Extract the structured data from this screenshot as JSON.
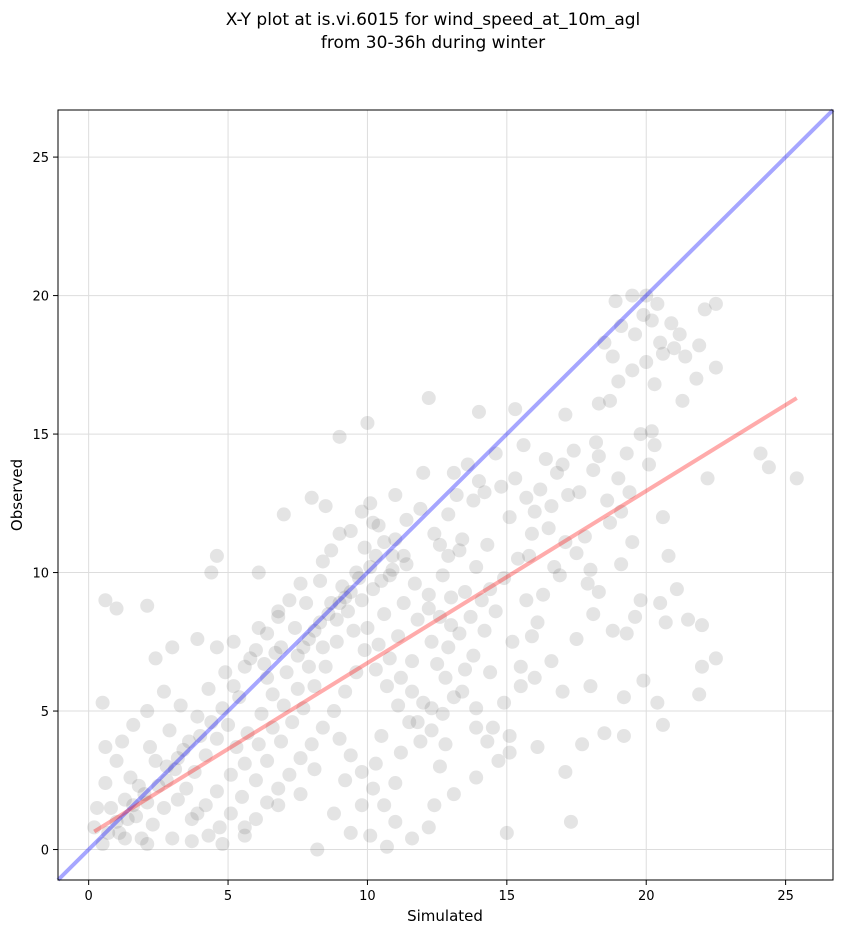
{
  "chart_data": {
    "type": "scatter",
    "title_line1": "X-Y plot at is.vi.6015 for wind_speed_at_10m_agl",
    "title_line2": "from 30-36h during winter",
    "xlabel": "Simulated",
    "ylabel": "Observed",
    "xlim": [
      -1.1,
      26.7
    ],
    "ylim": [
      -1.1,
      26.7
    ],
    "xticks": [
      0,
      5,
      10,
      15,
      20,
      25
    ],
    "yticks": [
      0,
      5,
      10,
      15,
      20,
      25
    ],
    "xtick_labels": [
      "0",
      "5",
      "10",
      "15",
      "20",
      "25"
    ],
    "ytick_labels": [
      "0",
      "5",
      "10",
      "15",
      "20",
      "25"
    ],
    "grid": true,
    "points_color": "#555555",
    "identity_line": {
      "color": "#0000ff",
      "points": [
        [
          -1.1,
          -1.1
        ],
        [
          26.7,
          26.7
        ]
      ]
    },
    "fit_line": {
      "color": "#ff0000",
      "points": [
        [
          0.2,
          0.65
        ],
        [
          25.4,
          16.3
        ]
      ]
    },
    "points": [
      [
        0.5,
        5.3
      ],
      [
        0.6,
        3.7
      ],
      [
        0.6,
        9.0
      ],
      [
        1.0,
        8.7
      ],
      [
        2.1,
        8.8
      ],
      [
        4.4,
        10.0
      ],
      [
        4.6,
        10.6
      ],
      [
        6.1,
        10.0
      ],
      [
        7.0,
        12.1
      ],
      [
        8.0,
        12.7
      ],
      [
        8.5,
        12.4
      ],
      [
        9.0,
        14.9
      ],
      [
        10.0,
        15.4
      ],
      [
        12.2,
        16.3
      ],
      [
        14.0,
        15.8
      ],
      [
        15.3,
        15.9
      ],
      [
        17.1,
        15.7
      ],
      [
        18.5,
        18.3
      ],
      [
        18.9,
        19.8
      ],
      [
        19.5,
        20.0
      ],
      [
        20.0,
        20.0
      ],
      [
        20.2,
        19.1
      ],
      [
        20.5,
        18.3
      ],
      [
        21.0,
        18.1
      ],
      [
        21.4,
        17.8
      ],
      [
        21.8,
        17.0
      ],
      [
        22.1,
        19.5
      ],
      [
        22.5,
        19.7
      ],
      [
        22.5,
        17.4
      ],
      [
        21.9,
        18.2
      ],
      [
        20.6,
        17.9
      ],
      [
        20.3,
        16.8
      ],
      [
        19.5,
        17.3
      ],
      [
        19.0,
        16.9
      ],
      [
        18.7,
        16.2
      ],
      [
        18.3,
        16.1
      ],
      [
        19.8,
        15.0
      ],
      [
        20.3,
        14.6
      ],
      [
        18.3,
        14.2
      ],
      [
        16.8,
        13.6
      ],
      [
        22.2,
        13.4
      ],
      [
        24.1,
        14.3
      ],
      [
        24.4,
        13.8
      ],
      [
        25.4,
        13.4
      ],
      [
        20.1,
        13.9
      ],
      [
        20.6,
        12.0
      ],
      [
        19.1,
        12.2
      ],
      [
        19.5,
        11.1
      ],
      [
        20.8,
        10.6
      ],
      [
        17.8,
        11.3
      ],
      [
        17.2,
        12.8
      ],
      [
        16.5,
        11.6
      ],
      [
        15.8,
        10.6
      ],
      [
        16.9,
        9.9
      ],
      [
        18.0,
        10.1
      ],
      [
        19.8,
        9.0
      ],
      [
        20.5,
        8.9
      ],
      [
        21.1,
        9.4
      ],
      [
        21.5,
        8.3
      ],
      [
        22.0,
        8.1
      ],
      [
        20.7,
        8.2
      ],
      [
        19.6,
        8.4
      ],
      [
        19.3,
        7.8
      ],
      [
        18.8,
        7.9
      ],
      [
        18.1,
        8.5
      ],
      [
        17.5,
        7.6
      ],
      [
        16.6,
        6.8
      ],
      [
        16.0,
        6.2
      ],
      [
        15.5,
        5.9
      ],
      [
        17.0,
        5.7
      ],
      [
        18.0,
        5.9
      ],
      [
        19.2,
        5.5
      ],
      [
        19.9,
        6.1
      ],
      [
        20.4,
        5.3
      ],
      [
        20.6,
        4.5
      ],
      [
        21.9,
        5.6
      ],
      [
        22.0,
        6.6
      ],
      [
        22.5,
        6.9
      ],
      [
        19.2,
        4.1
      ],
      [
        18.5,
        4.2
      ],
      [
        17.7,
        3.8
      ],
      [
        17.1,
        2.8
      ],
      [
        17.3,
        1.0
      ],
      [
        15.0,
        0.6
      ],
      [
        16.1,
        3.7
      ],
      [
        15.1,
        3.5
      ],
      [
        14.5,
        4.4
      ],
      [
        13.9,
        2.6
      ],
      [
        13.1,
        2.0
      ],
      [
        12.4,
        1.6
      ],
      [
        12.2,
        0.8
      ],
      [
        11.6,
        0.4
      ],
      [
        10.7,
        0.1
      ],
      [
        10.1,
        0.5
      ],
      [
        9.4,
        0.6
      ],
      [
        8.2,
        0.0
      ],
      [
        8.8,
        1.3
      ],
      [
        9.8,
        1.6
      ],
      [
        11.0,
        2.4
      ],
      [
        12.6,
        3.0
      ],
      [
        12.8,
        3.8
      ],
      [
        13.9,
        4.4
      ],
      [
        14.9,
        5.3
      ],
      [
        14.4,
        6.4
      ],
      [
        15.2,
        7.5
      ],
      [
        14.6,
        8.6
      ],
      [
        16.1,
        8.2
      ],
      [
        15.7,
        9.0
      ],
      [
        13.5,
        9.3
      ],
      [
        12.9,
        10.6
      ],
      [
        14.3,
        11.0
      ],
      [
        15.1,
        12.0
      ],
      [
        16.0,
        12.2
      ],
      [
        14.0,
        13.3
      ],
      [
        13.1,
        13.6
      ],
      [
        12.0,
        13.6
      ],
      [
        11.0,
        12.8
      ],
      [
        10.1,
        12.5
      ],
      [
        9.0,
        11.4
      ],
      [
        8.4,
        10.4
      ],
      [
        7.6,
        9.6
      ],
      [
        6.8,
        8.6
      ],
      [
        6.1,
        8.0
      ],
      [
        5.2,
        7.5
      ],
      [
        4.6,
        7.3
      ],
      [
        3.9,
        7.6
      ],
      [
        3.0,
        7.3
      ],
      [
        2.4,
        6.9
      ],
      [
        2.7,
        5.7
      ],
      [
        2.1,
        5.0
      ],
      [
        1.6,
        4.5
      ],
      [
        1.2,
        3.9
      ],
      [
        1.0,
        3.2
      ],
      [
        0.6,
        2.4
      ],
      [
        0.3,
        1.5
      ],
      [
        0.2,
        0.8
      ],
      [
        0.5,
        0.2
      ],
      [
        1.3,
        0.4
      ],
      [
        2.1,
        0.2
      ],
      [
        3.0,
        0.4
      ],
      [
        3.7,
        0.3
      ],
      [
        4.8,
        0.2
      ],
      [
        5.6,
        0.8
      ],
      [
        6.8,
        1.6
      ],
      [
        7.6,
        2.0
      ],
      [
        8.1,
        2.9
      ],
      [
        9.2,
        2.5
      ],
      [
        10.3,
        3.1
      ],
      [
        10.5,
        4.1
      ],
      [
        11.2,
        3.5
      ],
      [
        11.8,
        4.6
      ],
      [
        12.3,
        5.1
      ],
      [
        12.8,
        6.2
      ],
      [
        13.4,
        5.7
      ],
      [
        13.8,
        7.0
      ],
      [
        14.2,
        7.9
      ],
      [
        13.0,
        8.1
      ],
      [
        12.3,
        7.5
      ],
      [
        11.6,
        6.8
      ],
      [
        11.1,
        7.7
      ],
      [
        10.6,
        8.5
      ],
      [
        10.2,
        9.4
      ],
      [
        9.6,
        10.0
      ],
      [
        9.2,
        9.1
      ],
      [
        8.9,
        8.3
      ],
      [
        8.4,
        7.3
      ],
      [
        7.9,
        6.6
      ],
      [
        7.5,
        5.8
      ],
      [
        7.0,
        5.2
      ],
      [
        6.6,
        4.4
      ],
      [
        6.1,
        3.8
      ],
      [
        5.6,
        3.1
      ],
      [
        5.1,
        2.7
      ],
      [
        4.6,
        2.1
      ],
      [
        4.2,
        1.6
      ],
      [
        3.7,
        1.1
      ],
      [
        3.2,
        1.8
      ],
      [
        2.8,
        2.5
      ],
      [
        2.4,
        3.2
      ],
      [
        2.0,
        2.0
      ],
      [
        1.7,
        1.2
      ],
      [
        1.3,
        1.8
      ],
      [
        1.0,
        1.0
      ],
      [
        0.8,
        1.5
      ],
      [
        0.7,
        0.6
      ],
      [
        1.5,
        2.6
      ],
      [
        2.2,
        3.7
      ],
      [
        2.9,
        4.3
      ],
      [
        3.3,
        5.2
      ],
      [
        3.9,
        4.8
      ],
      [
        4.3,
        5.8
      ],
      [
        4.9,
        6.4
      ],
      [
        5.4,
        5.5
      ],
      [
        5.8,
        6.9
      ],
      [
        6.4,
        6.2
      ],
      [
        6.9,
        7.3
      ],
      [
        7.4,
        8.0
      ],
      [
        7.8,
        8.9
      ],
      [
        8.3,
        9.7
      ],
      [
        8.7,
        10.8
      ],
      [
        9.4,
        11.5
      ],
      [
        9.9,
        10.9
      ],
      [
        10.4,
        11.7
      ],
      [
        10.9,
        10.6
      ],
      [
        11.4,
        11.9
      ],
      [
        11.9,
        12.3
      ],
      [
        12.4,
        11.4
      ],
      [
        12.9,
        12.1
      ],
      [
        13.4,
        11.2
      ],
      [
        13.8,
        12.6
      ],
      [
        14.2,
        12.9
      ],
      [
        14.8,
        13.1
      ],
      [
        15.3,
        13.4
      ],
      [
        15.7,
        12.7
      ],
      [
        16.2,
        13.0
      ],
      [
        16.6,
        12.4
      ],
      [
        17.0,
        13.9
      ],
      [
        17.6,
        12.9
      ],
      [
        18.1,
        13.7
      ],
      [
        18.6,
        12.6
      ],
      [
        19.0,
        13.4
      ],
      [
        19.4,
        12.9
      ],
      [
        15.9,
        11.4
      ],
      [
        15.4,
        10.5
      ],
      [
        14.9,
        9.8
      ],
      [
        14.4,
        9.4
      ],
      [
        13.9,
        10.2
      ],
      [
        13.3,
        10.8
      ],
      [
        12.7,
        9.9
      ],
      [
        12.2,
        9.2
      ],
      [
        11.7,
        9.6
      ],
      [
        11.3,
        8.9
      ],
      [
        10.8,
        9.9
      ],
      [
        10.3,
        10.6
      ],
      [
        9.8,
        9.0
      ],
      [
        9.3,
        8.6
      ],
      [
        8.9,
        7.5
      ],
      [
        8.5,
        6.6
      ],
      [
        8.1,
        5.9
      ],
      [
        7.7,
        5.1
      ],
      [
        7.3,
        4.6
      ],
      [
        6.9,
        3.9
      ],
      [
        6.4,
        3.2
      ],
      [
        6.0,
        2.5
      ],
      [
        5.5,
        1.9
      ],
      [
        5.1,
        1.3
      ],
      [
        4.7,
        0.8
      ],
      [
        4.3,
        0.5
      ],
      [
        3.9,
        1.3
      ],
      [
        3.5,
        2.2
      ],
      [
        3.1,
        2.9
      ],
      [
        2.7,
        1.5
      ],
      [
        2.3,
        0.9
      ],
      [
        1.9,
        0.4
      ],
      [
        1.6,
        1.6
      ],
      [
        1.1,
        0.6
      ],
      [
        3.4,
        3.6
      ],
      [
        3.8,
        2.8
      ],
      [
        4.2,
        3.4
      ],
      [
        4.6,
        4.0
      ],
      [
        5.0,
        4.5
      ],
      [
        5.3,
        3.7
      ],
      [
        5.7,
        4.2
      ],
      [
        6.2,
        4.9
      ],
      [
        6.6,
        5.6
      ],
      [
        7.1,
        6.4
      ],
      [
        7.5,
        7.0
      ],
      [
        7.9,
        7.6
      ],
      [
        8.3,
        8.2
      ],
      [
        8.7,
        8.9
      ],
      [
        9.1,
        9.5
      ],
      [
        9.5,
        7.9
      ],
      [
        9.9,
        7.2
      ],
      [
        10.3,
        6.5
      ],
      [
        10.7,
        5.9
      ],
      [
        11.1,
        5.2
      ],
      [
        11.5,
        4.6
      ],
      [
        11.9,
        3.9
      ],
      [
        12.3,
        4.3
      ],
      [
        12.7,
        4.9
      ],
      [
        13.1,
        5.5
      ],
      [
        13.5,
        6.5
      ],
      [
        13.9,
        5.1
      ],
      [
        14.3,
        3.9
      ],
      [
        14.7,
        3.2
      ],
      [
        15.1,
        4.1
      ],
      [
        15.5,
        6.6
      ],
      [
        15.9,
        7.7
      ],
      [
        16.3,
        9.2
      ],
      [
        16.7,
        10.2
      ],
      [
        17.1,
        11.1
      ],
      [
        17.5,
        10.7
      ],
      [
        17.9,
        9.6
      ],
      [
        18.3,
        9.3
      ],
      [
        18.7,
        11.8
      ],
      [
        19.1,
        10.3
      ],
      [
        10.0,
        8.0
      ],
      [
        10.4,
        7.4
      ],
      [
        10.8,
        6.9
      ],
      [
        11.2,
        6.2
      ],
      [
        11.6,
        5.7
      ],
      [
        12.0,
        5.3
      ],
      [
        12.5,
        6.7
      ],
      [
        12.9,
        7.3
      ],
      [
        13.3,
        7.8
      ],
      [
        13.7,
        8.4
      ],
      [
        14.1,
        9.0
      ],
      [
        9.6,
        6.4
      ],
      [
        9.2,
        5.7
      ],
      [
        8.8,
        5.0
      ],
      [
        8.4,
        4.4
      ],
      [
        8.0,
        3.8
      ],
      [
        7.6,
        3.3
      ],
      [
        7.2,
        2.7
      ],
      [
        6.8,
        2.2
      ],
      [
        6.4,
        1.7
      ],
      [
        6.0,
        1.1
      ],
      [
        5.6,
        0.5
      ],
      [
        9.0,
        4.0
      ],
      [
        9.4,
        3.4
      ],
      [
        9.8,
        2.8
      ],
      [
        10.2,
        2.2
      ],
      [
        10.6,
        1.6
      ],
      [
        11.0,
        1.0
      ],
      [
        5.2,
        5.9
      ],
      [
        5.6,
        6.6
      ],
      [
        6.0,
        7.2
      ],
      [
        6.4,
        7.8
      ],
      [
        6.8,
        8.4
      ],
      [
        7.2,
        9.0
      ],
      [
        4.8,
        5.1
      ],
      [
        4.4,
        4.6
      ],
      [
        4.0,
        4.1
      ],
      [
        3.6,
        3.9
      ],
      [
        3.2,
        3.3
      ],
      [
        2.8,
        3.0
      ],
      [
        2.5,
        2.3
      ],
      [
        2.1,
        1.7
      ],
      [
        1.8,
        2.3
      ],
      [
        1.4,
        1.1
      ],
      [
        11.8,
        8.3
      ],
      [
        12.2,
        8.7
      ],
      [
        12.6,
        8.4
      ],
      [
        13.0,
        9.1
      ],
      [
        11.4,
        10.3
      ],
      [
        11.0,
        11.2
      ],
      [
        10.6,
        11.1
      ],
      [
        10.2,
        11.8
      ],
      [
        9.8,
        12.2
      ],
      [
        12.6,
        11.0
      ],
      [
        13.2,
        12.8
      ],
      [
        13.6,
        13.9
      ],
      [
        14.6,
        14.3
      ],
      [
        15.6,
        14.6
      ],
      [
        16.4,
        14.1
      ],
      [
        17.4,
        14.4
      ],
      [
        18.2,
        14.7
      ],
      [
        19.3,
        14.3
      ],
      [
        20.2,
        15.1
      ],
      [
        21.3,
        16.2
      ],
      [
        19.1,
        18.9
      ],
      [
        19.9,
        19.3
      ],
      [
        20.4,
        19.7
      ],
      [
        20.9,
        19.0
      ],
      [
        21.2,
        18.6
      ],
      [
        19.6,
        18.6
      ],
      [
        20.0,
        17.6
      ],
      [
        18.8,
        17.8
      ],
      [
        6.3,
        6.7
      ],
      [
        6.7,
        7.1
      ],
      [
        7.7,
        7.3
      ],
      [
        8.1,
        7.9
      ],
      [
        8.6,
        8.5
      ],
      [
        9.0,
        8.9
      ],
      [
        9.4,
        9.3
      ],
      [
        9.7,
        9.8
      ],
      [
        10.1,
        10.2
      ],
      [
        10.5,
        9.7
      ],
      [
        10.9,
        10.1
      ],
      [
        11.3,
        10.6
      ]
    ]
  }
}
